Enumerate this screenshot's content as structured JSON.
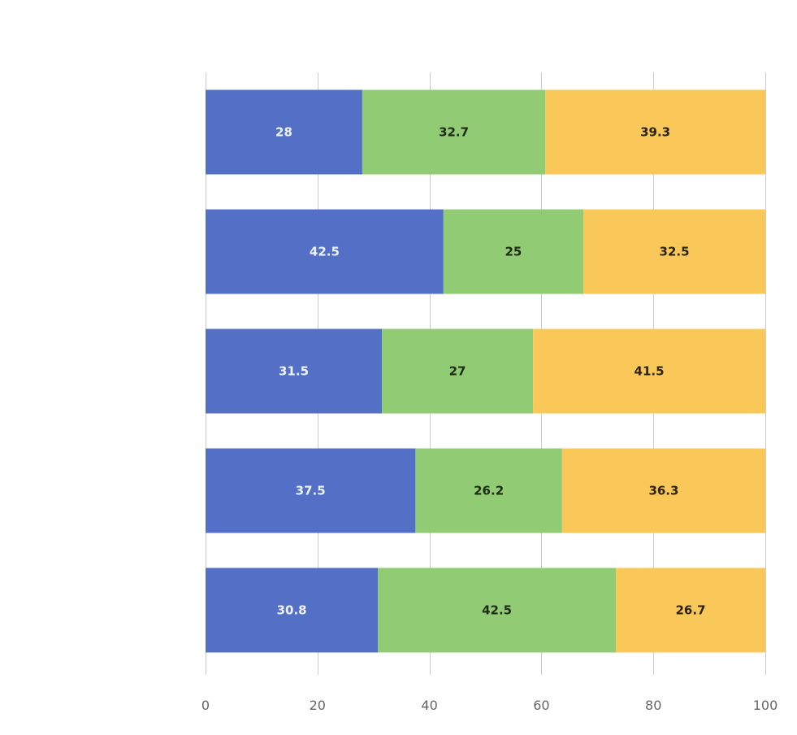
{
  "chart_data": {
    "type": "bar",
    "orientation": "horizontal",
    "stacked": true,
    "percent_stacked": true,
    "categories": [
      "",
      "",
      "",
      "",
      ""
    ],
    "series": [
      {
        "color": "#5470c6",
        "label_color": "#eef2ff",
        "values": [
          28,
          42.5,
          31.5,
          37.5,
          30.8
        ]
      },
      {
        "color": "#91cc75",
        "label_color": "#1f2a14",
        "values": [
          32.7,
          25,
          27,
          26.2,
          42.5
        ]
      },
      {
        "color": "#fac858",
        "label_color": "#2b2410",
        "values": [
          39.3,
          32.5,
          41.5,
          36.3,
          26.7
        ]
      }
    ],
    "xlim": [
      0,
      100
    ],
    "xticks": [
      0,
      20,
      40,
      60,
      80,
      100
    ],
    "grid": "vertical",
    "legend": "none",
    "title": "",
    "xlabel": "",
    "ylabel": ""
  }
}
